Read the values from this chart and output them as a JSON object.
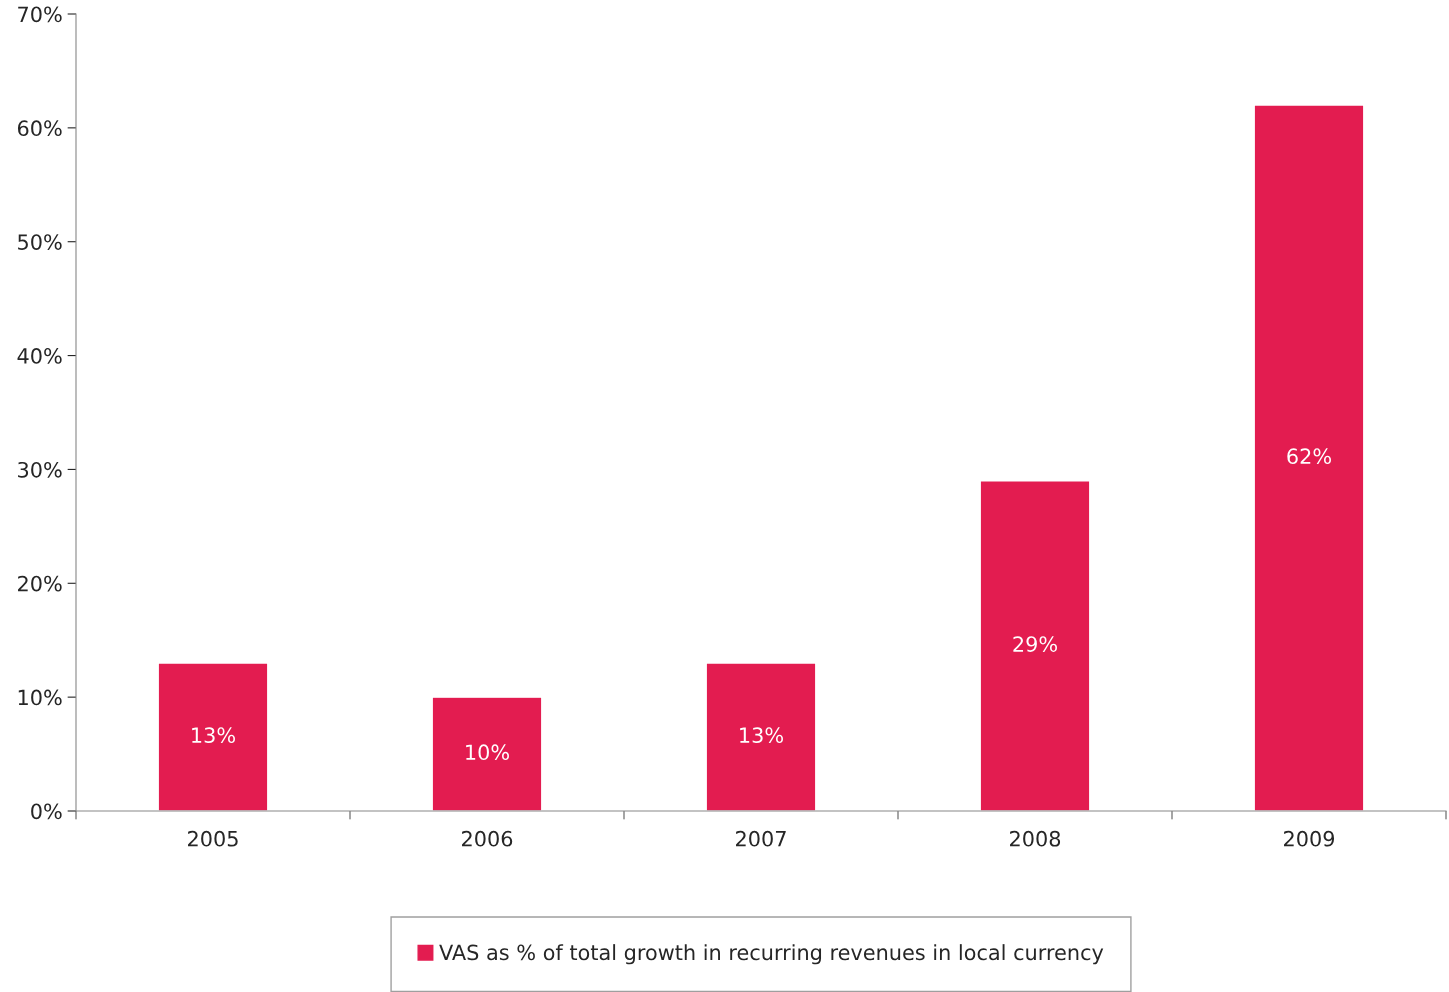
{
  "chart_data": {
    "type": "bar",
    "categories": [
      "2005",
      "2006",
      "2007",
      "2008",
      "2009"
    ],
    "series": [
      {
        "name": "VAS as % of total growth in recurring revenues in local currency",
        "color": "#e31c50",
        "values": [
          13,
          10,
          13,
          29,
          62
        ],
        "value_labels": [
          "13%",
          "10%",
          "13%",
          "29%",
          "62%"
        ]
      }
    ],
    "ylim": [
      0,
      70
    ],
    "yticks": [
      {
        "value": 0,
        "label": "0%"
      },
      {
        "value": 10,
        "label": "10%"
      },
      {
        "value": 20,
        "label": "20%"
      },
      {
        "value": 30,
        "label": "30%"
      },
      {
        "value": 40,
        "label": "40%"
      },
      {
        "value": 50,
        "label": "50%"
      },
      {
        "value": 60,
        "label": "60%"
      },
      {
        "value": 70,
        "label": "70%"
      }
    ],
    "grid": false,
    "legend": "bottom"
  }
}
